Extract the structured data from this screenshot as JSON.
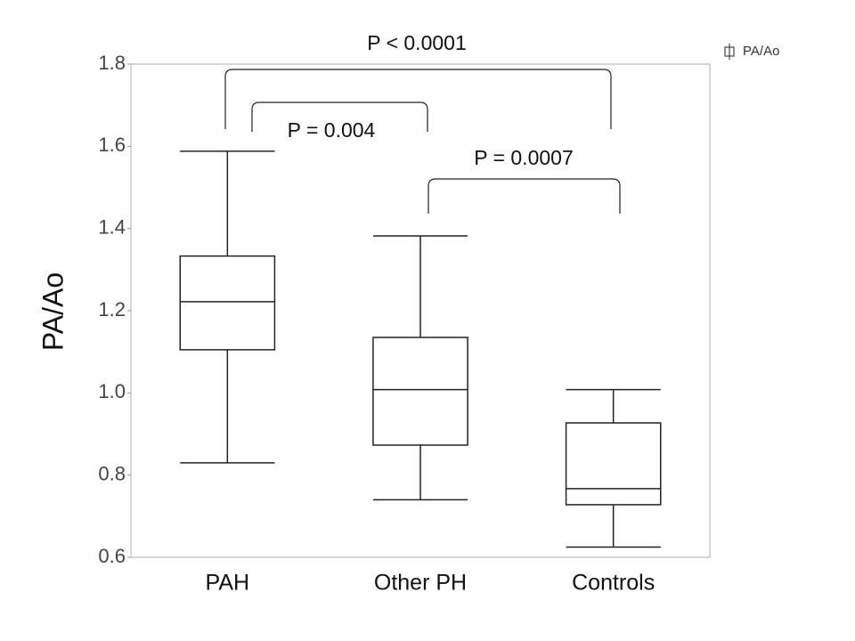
{
  "chart_data": {
    "type": "box",
    "y_label": "PA/Ao",
    "categories": [
      "PAH",
      "Other PH",
      "Controls"
    ],
    "series": [
      {
        "name": "PA/Ao",
        "color": "#222222",
        "whisker_low": [
          0.83,
          0.74,
          0.625
        ],
        "q1": [
          1.105,
          0.873,
          0.728
        ],
        "median": [
          1.222,
          1.008,
          0.767
        ],
        "q3": [
          1.333,
          1.135,
          0.927
        ],
        "whisker_high": [
          1.588,
          1.382,
          1.008
        ]
      }
    ],
    "ylim": [
      0.6,
      1.8
    ],
    "yticks": [
      0.6,
      0.8,
      {
        "value": 1.0,
        "label": "1.0"
      },
      1.2,
      1.4,
      1.6,
      1.8
    ],
    "grid": false,
    "legend": "top-right",
    "annotations": [
      {
        "text": "P < 0.0001"
      },
      {
        "text": "P = 0.004"
      },
      {
        "text": "P = 0.0007"
      }
    ]
  }
}
